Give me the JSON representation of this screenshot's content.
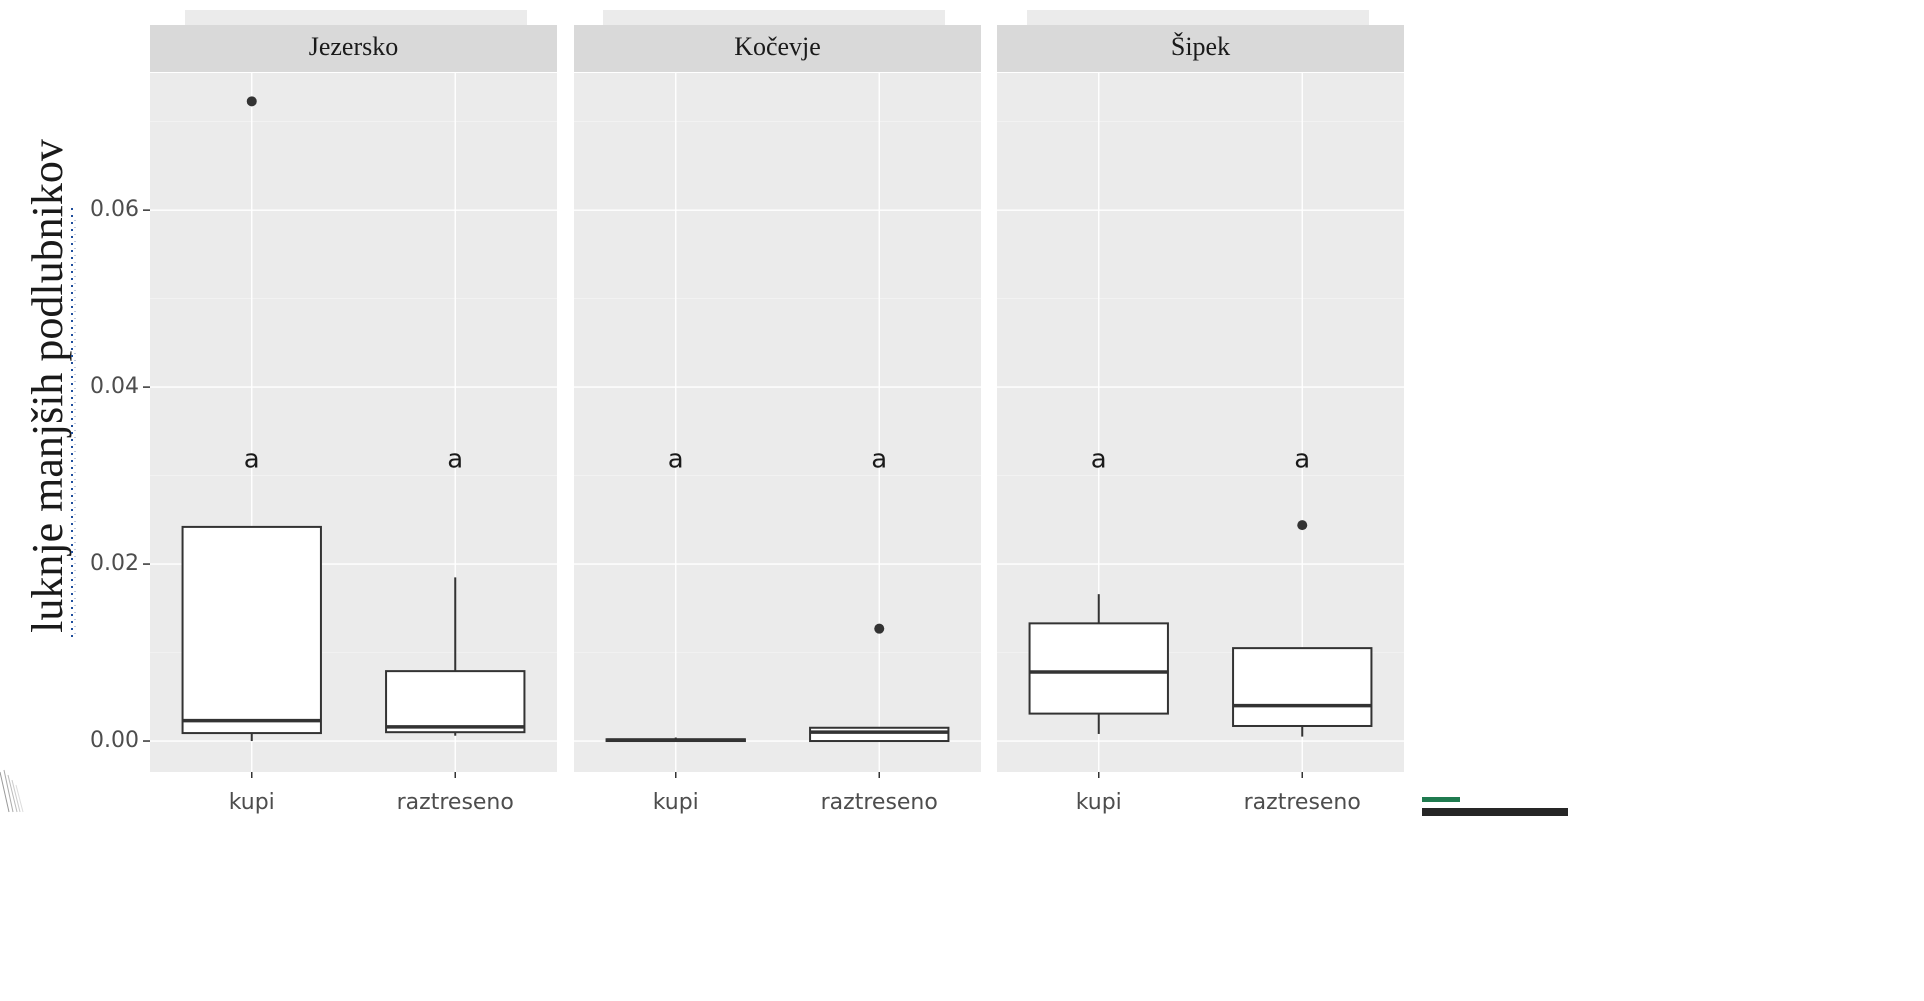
{
  "chart_data": {
    "type": "box",
    "ylabel": "luknje manjših podlubnikov",
    "ylim": [
      -0.0035,
      0.0755
    ],
    "yticks": [
      "0.00",
      "0.02",
      "0.04",
      "0.06"
    ],
    "ytick_values": [
      0.0,
      0.02,
      0.04,
      0.06
    ],
    "categories": [
      "kupi",
      "raztreseno"
    ],
    "grid": true,
    "panels": [
      {
        "title": "Jezersko",
        "boxes": [
          {
            "category": "kupi",
            "min": 0.0,
            "q1": 0.0009,
            "median": 0.0023,
            "q3": 0.0242,
            "max": 0.0242,
            "outliers": [
              0.0723
            ],
            "letter": "a"
          },
          {
            "category": "raztreseno",
            "min": 0.0006,
            "q1": 0.001,
            "median": 0.0016,
            "q3": 0.0079,
            "max": 0.0185,
            "outliers": [],
            "letter": "a"
          }
        ]
      },
      {
        "title": "Kočevje",
        "boxes": [
          {
            "category": "kupi",
            "min": 0.0,
            "q1": 0.0,
            "median": 0.0001,
            "q3": 0.0002,
            "max": 0.0004,
            "outliers": [],
            "letter": "a"
          },
          {
            "category": "raztreseno",
            "min": 0.0,
            "q1": 0.0,
            "median": 0.001,
            "q3": 0.0015,
            "max": 0.0015,
            "outliers": [
              0.0127
            ],
            "letter": "a"
          }
        ]
      },
      {
        "title": "Šipek",
        "boxes": [
          {
            "category": "kupi",
            "min": 0.0008,
            "q1": 0.0031,
            "median": 0.0078,
            "q3": 0.0133,
            "max": 0.0166,
            "outliers": [],
            "letter": "a"
          },
          {
            "category": "raztreseno",
            "min": 0.0005,
            "q1": 0.0017,
            "median": 0.004,
            "q3": 0.0105,
            "max": 0.0105,
            "outliers": [
              0.0244
            ],
            "letter": "a"
          }
        ]
      }
    ]
  },
  "colors": {
    "panel_background": "#ebebeb",
    "strip_background": "#d9d9d9",
    "box_line": "#333333",
    "box_fill": "#ffffff",
    "dotted_accent": "#1f4e9c",
    "green_accent": "#1f7a4f",
    "dark_accent": "#262626"
  }
}
